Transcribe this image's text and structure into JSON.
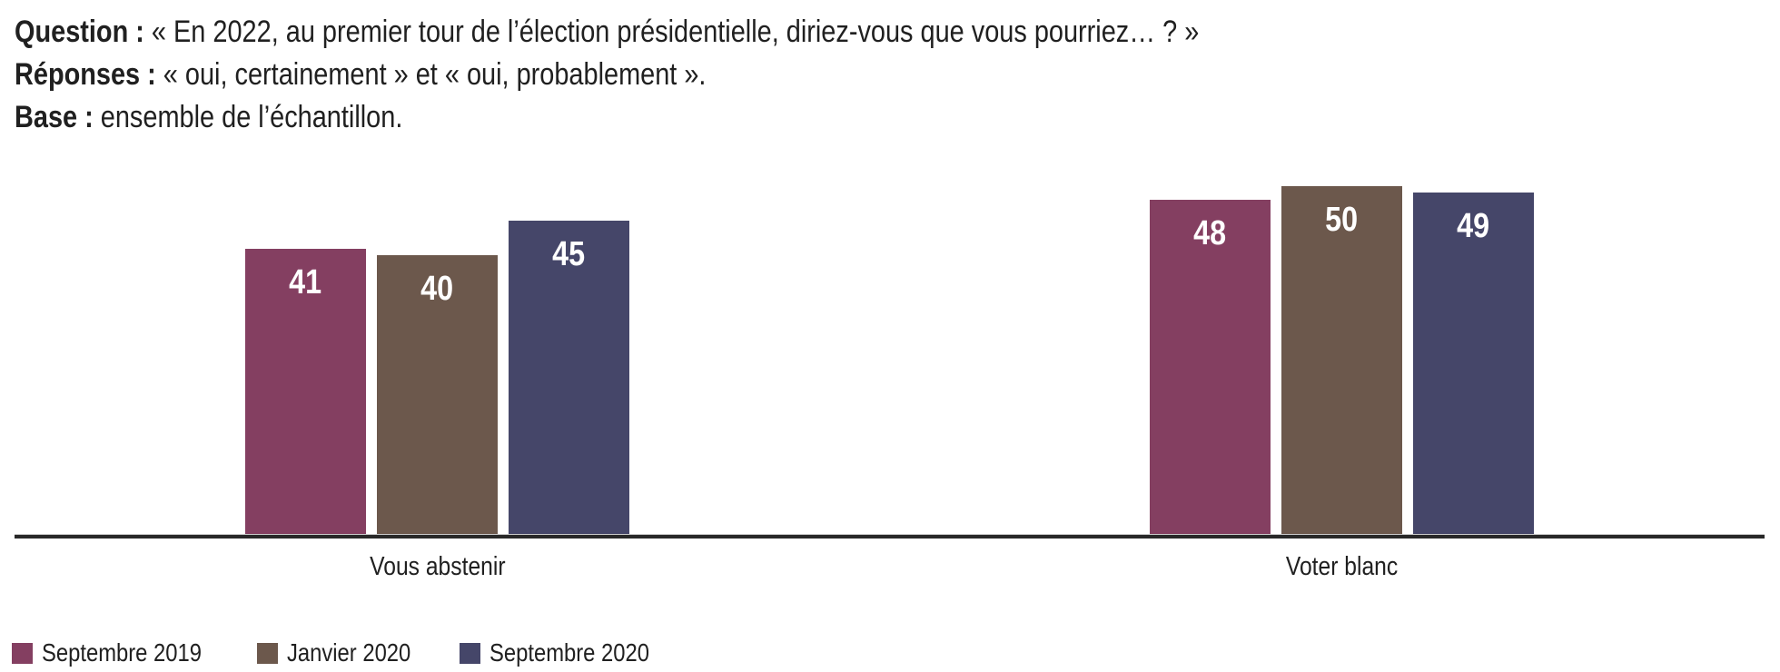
{
  "header": {
    "question_label": "Question :",
    "question_text": " « En 2022, au premier tour de l’élection présidentielle, diriez-vous que vous pourriez… ? »",
    "responses_label": "Réponses :",
    "responses_text": " « oui, certainement » et « oui, probablement ».",
    "base_label": "Base :",
    "base_text": " ensemble de l’échantillon."
  },
  "chart_data": {
    "type": "bar",
    "title": "",
    "categories": [
      "Vous abstenir",
      "Voter blanc"
    ],
    "series": [
      {
        "name": "Septembre 2019",
        "color": "#843F61",
        "values": [
          41,
          48
        ]
      },
      {
        "name": "Janvier 2020",
        "color": "#6C584C",
        "values": [
          40,
          50
        ]
      },
      {
        "name": "Septembre 2020",
        "color": "#454669",
        "values": [
          45,
          49
        ]
      }
    ],
    "unit": "%",
    "ylim": [
      0,
      57
    ],
    "grid": false,
    "value_labels": "inside-top",
    "value_label_color": "#ffffff",
    "axis_line_color": "#282828",
    "legend_position": "bottom-left"
  }
}
